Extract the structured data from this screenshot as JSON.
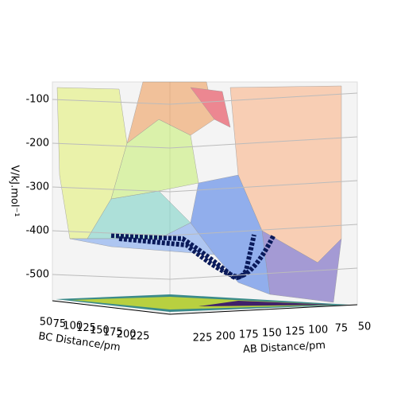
{
  "chart_data": {
    "type": "surface3d",
    "zlabel": "V/kJ.mol⁻¹",
    "zlim": [
      -560,
      -60
    ],
    "zticks": [
      -100,
      -200,
      -300,
      -400,
      -500
    ],
    "ylabel": "BC Distance/pm",
    "ylim": [
      50,
      225
    ],
    "yticks": [
      50,
      75,
      100,
      125,
      150,
      175,
      200,
      225
    ],
    "xlabel": "AB Distance/pm",
    "xlim": [
      225,
      50
    ],
    "xticks": [
      225,
      200,
      175,
      150,
      125,
      100,
      75,
      50
    ]
  }
}
